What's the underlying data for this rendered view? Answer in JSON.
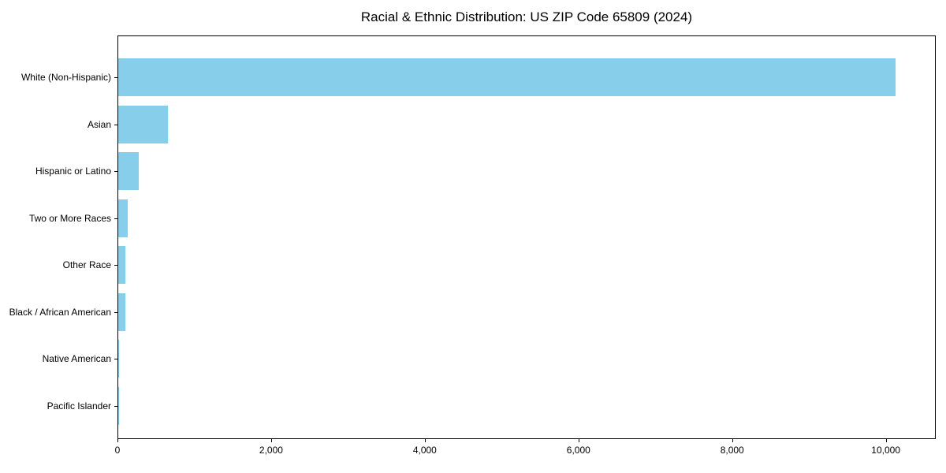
{
  "figure": {
    "background": "#ffffff"
  },
  "chart_data": {
    "type": "bar",
    "orientation": "horizontal",
    "title": "Racial & Ethnic Distribution: US ZIP Code 65809 (2024)",
    "categories": [
      "White (Non-Hispanic)",
      "Asian",
      "Hispanic or Latino",
      "Two or More Races",
      "Other Race",
      "Black / African American",
      "Native American",
      "Pacific Islander"
    ],
    "values": [
      10140,
      650,
      270,
      120,
      95,
      90,
      5,
      2
    ],
    "xlabel": "",
    "ylabel": "",
    "xlim": [
      0,
      10650
    ],
    "x_ticks": [
      0,
      2000,
      4000,
      6000,
      8000,
      10000
    ],
    "x_tick_labels": [
      "0",
      "2,000",
      "4,000",
      "6,000",
      "8,000",
      "10,000"
    ],
    "bar_color": "#87CEEB",
    "axis_color": "#000000",
    "text_color": "#000000",
    "grid": false,
    "legend": false
  }
}
